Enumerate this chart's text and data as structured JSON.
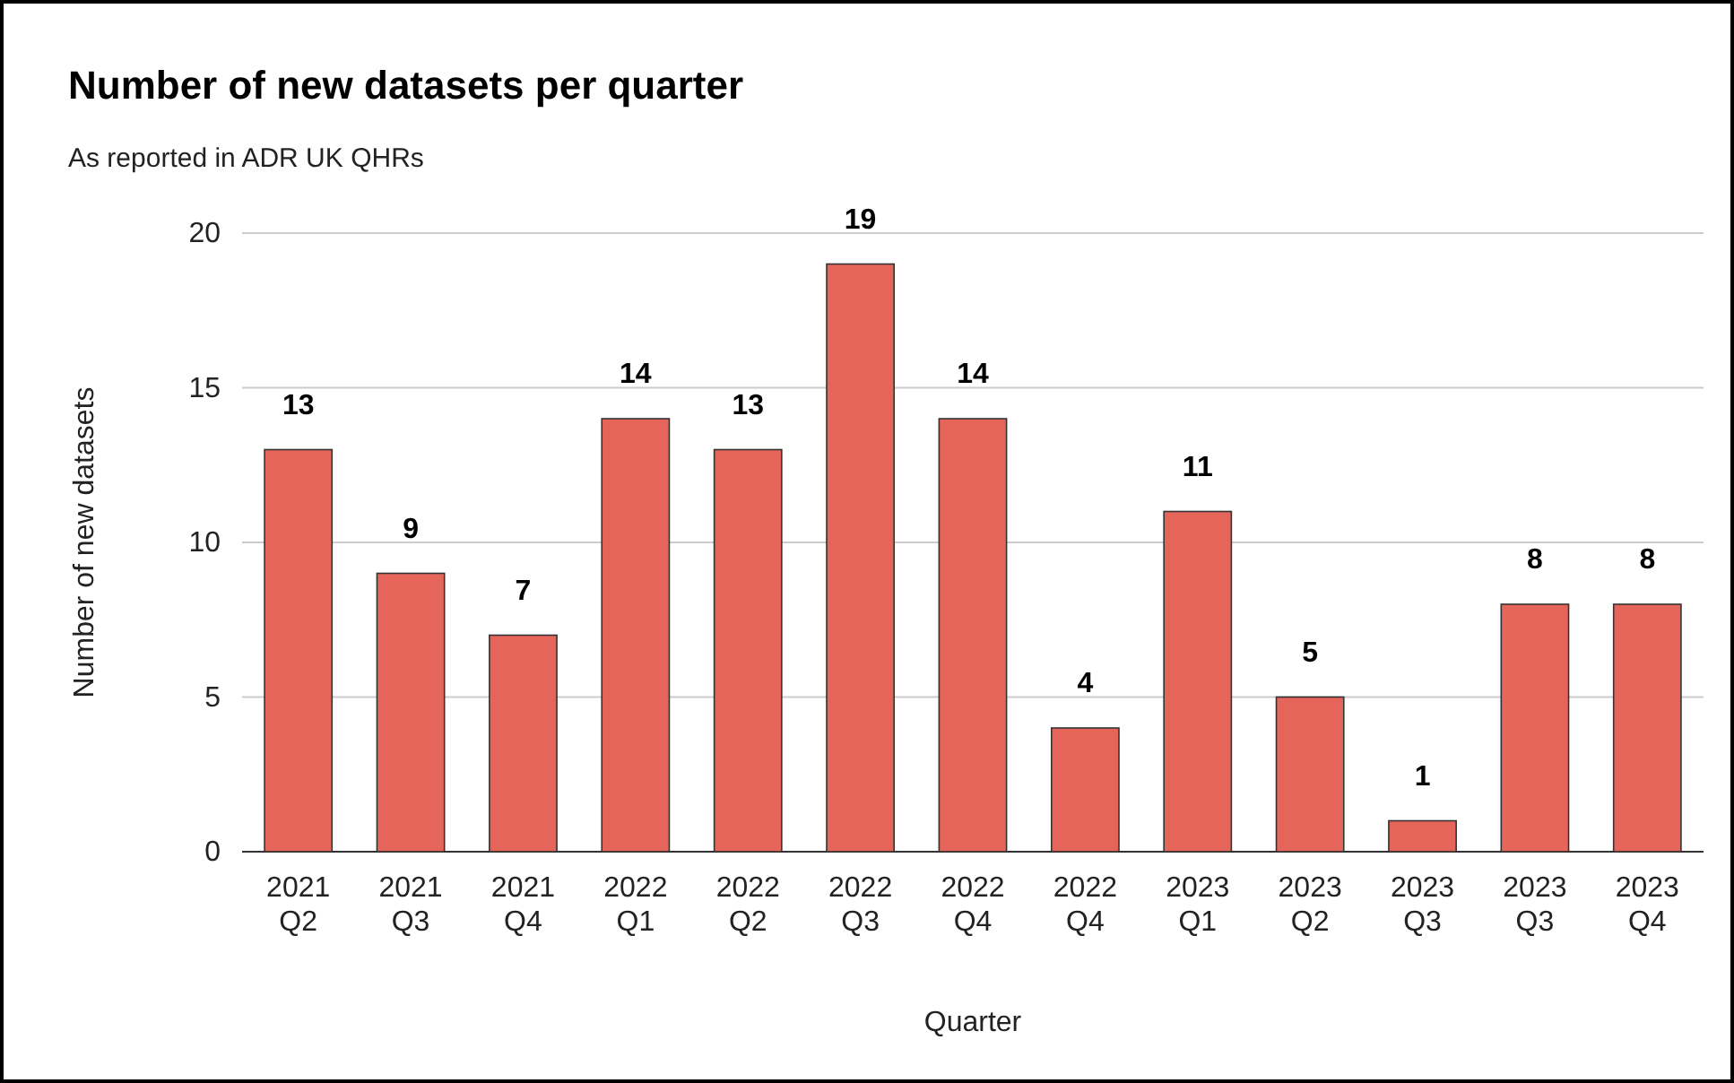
{
  "chart_data": {
    "type": "bar",
    "title": "Number of new datasets per quarter",
    "subtitle": "As reported in ADR UK QHRs",
    "xlabel": "Quarter",
    "ylabel": "Number of new datasets",
    "categories": [
      "2021 Q2",
      "2021 Q3",
      "2021 Q4",
      "2022 Q1",
      "2022 Q2",
      "2022 Q3",
      "2022 Q4",
      "2022 Q4",
      "2023 Q1",
      "2023 Q2",
      "2023 Q3",
      "2023 Q3",
      "2023 Q4"
    ],
    "values": [
      13,
      9,
      7,
      14,
      13,
      19,
      14,
      4,
      11,
      5,
      1,
      8,
      8
    ],
    "color": "#e6655a",
    "ylim": [
      0,
      20
    ],
    "yticks": [
      0,
      5,
      10,
      15,
      20
    ],
    "grid": "y",
    "data_labels": true
  }
}
